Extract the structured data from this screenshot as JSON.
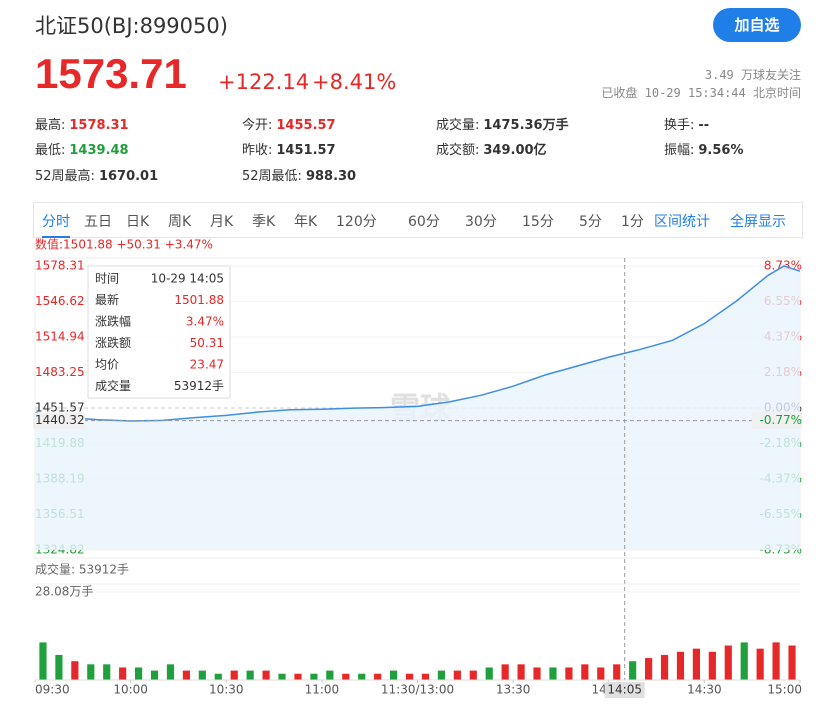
{
  "header": {
    "title": "北证50(BJ:899050)",
    "price": "1573.71",
    "change": "+122.14",
    "change_pct": "+8.41%",
    "button": "加自选",
    "followers": "3.49 万球友关注",
    "status": "已收盘 10-29 15:34:44 北京时间"
  },
  "stats": [
    [
      {
        "label": "最高:",
        "value": "1578.31",
        "color": "#e62828"
      },
      {
        "label": "今开:",
        "value": "1455.57",
        "color": "#e62828"
      },
      {
        "label": "成交量:",
        "value": "1475.36万手",
        "color": "#333333"
      },
      {
        "label": "换手:",
        "value": "--",
        "color": "#333333"
      }
    ],
    [
      {
        "label": "最低:",
        "value": "1439.48",
        "color": "#1fa03c"
      },
      {
        "label": "昨收:",
        "value": "1451.57",
        "color": "#333333"
      },
      {
        "label": "成交额:",
        "value": "349.00亿",
        "color": "#333333"
      },
      {
        "label": "振幅:",
        "value": "9.56%",
        "color": "#333333"
      }
    ],
    [
      {
        "label": "52周最高:",
        "value": "1670.01",
        "color": "#333333"
      },
      {
        "label": "52周最低:",
        "value": "988.30",
        "color": "#333333"
      }
    ]
  ],
  "tabs": [
    "分时",
    "五日",
    "日K",
    "周K",
    "月K",
    "季K",
    "年K",
    "120分",
    "60分",
    "30分",
    "15分",
    "5分",
    "1分"
  ],
  "tab_links": [
    "区间统计",
    "全屏显示"
  ],
  "chart_data": {
    "type": "line",
    "info_line": "数值:1501.88 +50.31 +3.47%",
    "watermark": "雪球",
    "x": [
      0,
      10,
      20,
      30,
      40,
      50,
      60,
      70,
      80,
      90,
      100,
      110,
      120,
      130,
      140,
      150,
      160,
      170,
      180,
      190,
      200,
      210,
      220,
      230,
      235,
      240
    ],
    "values": [
      1447.5,
      1443,
      1441,
      1440,
      1440.5,
      1443,
      1445,
      1448,
      1450,
      1450.5,
      1451.5,
      1452,
      1453,
      1457,
      1463,
      1471,
      1481,
      1489,
      1497,
      1504,
      1512,
      1527,
      1547,
      1570,
      1578.31,
      1573.71
    ],
    "color": "#3d8ee8",
    "xlim": [
      0,
      240
    ],
    "xticks": [
      {
        "value": 0,
        "label": "09:30"
      },
      {
        "value": 30,
        "label": "10:00"
      },
      {
        "value": 60,
        "label": "10:30"
      },
      {
        "value": 90,
        "label": "11:00"
      },
      {
        "value": 120,
        "label": "11:30/13:00"
      },
      {
        "value": 150,
        "label": "13:30"
      },
      {
        "value": 180,
        "label": "14:00"
      },
      {
        "value": 210,
        "label": "14:30"
      },
      {
        "value": 240,
        "label": "15:00"
      }
    ],
    "ylim": [
      1324.82,
      1578.31
    ],
    "yticks": [
      1578.31,
      1546.62,
      1514.94,
      1483.25,
      1451.57,
      1419.88,
      1388.19,
      1356.51,
      1324.82
    ],
    "y2lim": [
      -8.73,
      8.73
    ],
    "y2ticks": [
      {
        "value": 8.73,
        "label": "8.73%"
      },
      {
        "value": 6.55,
        "label": "6.55%"
      },
      {
        "value": 4.37,
        "label": "4.37%"
      },
      {
        "value": 2.18,
        "label": "2.18%"
      },
      {
        "value": 0,
        "label": "0.00%"
      },
      {
        "value": -2.18,
        "label": "-2.18%"
      },
      {
        "value": -4.37,
        "label": "-4.37%"
      },
      {
        "value": -6.55,
        "label": "-6.55%"
      },
      {
        "value": -8.73,
        "label": "-8.73%"
      }
    ],
    "crosshair": {
      "x": {
        "value": 185,
        "label": "14:05"
      },
      "price": 1440.32,
      "pct": {
        "value": -0.77,
        "label": "-0.77%"
      }
    },
    "tooltip": [
      [
        "时间",
        "10-29 14:05"
      ],
      [
        "最新",
        "1501.88"
      ],
      [
        "涨跌幅",
        "3.47%"
      ],
      [
        "涨跌额",
        "50.31"
      ],
      [
        "均价",
        "23.47"
      ],
      [
        "成交量",
        "53912手"
      ]
    ],
    "volume": {
      "label": "成交量: 53912手",
      "ylim": [
        0,
        28.08
      ],
      "yticks": [
        {
          "value": 28.08,
          "label": "28.08万手"
        }
      ],
      "x": [
        2.5,
        7.5,
        12.5,
        17.5,
        22.5,
        27.5,
        32.5,
        37.5,
        42.5,
        47.5,
        52.5,
        57.5,
        62.5,
        67.5,
        72.5,
        77.5,
        82.5,
        87.5,
        92.5,
        97.5,
        102.5,
        107.5,
        112.5,
        117.5,
        122.5,
        127.5,
        132.5,
        137.5,
        142.5,
        147.5,
        152.5,
        157.5,
        162.5,
        167.5,
        172.5,
        177.5,
        182.5,
        187.5,
        192.5,
        197.5,
        202.5,
        207.5,
        212.5,
        217.5,
        222.5,
        227.5,
        232.5,
        237.5
      ],
      "values": [
        12,
        8,
        6,
        5,
        5,
        4,
        4,
        3,
        5,
        3,
        3,
        2,
        3,
        3,
        3,
        2,
        2,
        2,
        3,
        2,
        2,
        2,
        3,
        2,
        2,
        3,
        3,
        3,
        4,
        5,
        5,
        4,
        4,
        4,
        5,
        4,
        5,
        6,
        7,
        8,
        9,
        10,
        9,
        11,
        12,
        10,
        12,
        11
      ],
      "colors": [
        "#1fa03c",
        "#1fa03c",
        "#e62828",
        "#1fa03c",
        "#1fa03c",
        "#e62828",
        "#1fa03c",
        "#1fa03c",
        "#1fa03c",
        "#e62828",
        "#1fa03c",
        "#1fa03c",
        "#e62828",
        "#1fa03c",
        "#e62828",
        "#1fa03c",
        "#e62828",
        "#1fa03c",
        "#1fa03c",
        "#e62828",
        "#1fa03c",
        "#e62828",
        "#1fa03c",
        "#e62828",
        "#e62828",
        "#1fa03c",
        "#e62828",
        "#e62828",
        "#1fa03c",
        "#e62828",
        "#e62828",
        "#e62828",
        "#1fa03c",
        "#e62828",
        "#e62828",
        "#e62828",
        "#e62828",
        "#1fa03c",
        "#e62828",
        "#e62828",
        "#e62828",
        "#e62828",
        "#e62828",
        "#e62828",
        "#1fa03c",
        "#e62828",
        "#e62828",
        "#e62828"
      ]
    }
  }
}
